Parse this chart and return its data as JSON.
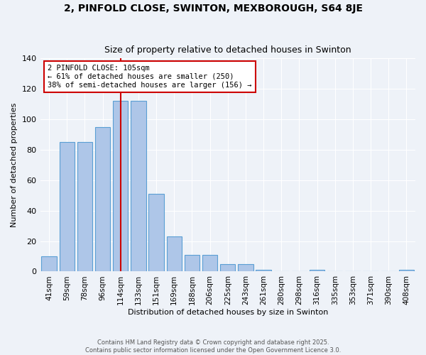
{
  "title": "2, PINFOLD CLOSE, SWINTON, MEXBOROUGH, S64 8JE",
  "subtitle": "Size of property relative to detached houses in Swinton",
  "xlabel": "Distribution of detached houses by size in Swinton",
  "ylabel": "Number of detached properties",
  "categories": [
    "41sqm",
    "59sqm",
    "78sqm",
    "96sqm",
    "114sqm",
    "133sqm",
    "151sqm",
    "169sqm",
    "188sqm",
    "206sqm",
    "225sqm",
    "243sqm",
    "261sqm",
    "280sqm",
    "298sqm",
    "316sqm",
    "335sqm",
    "353sqm",
    "371sqm",
    "390sqm",
    "408sqm"
  ],
  "values": [
    10,
    85,
    85,
    95,
    112,
    112,
    51,
    23,
    11,
    11,
    5,
    5,
    1,
    0,
    0,
    1,
    0,
    0,
    0,
    0,
    1
  ],
  "bar_color": "#aec6e8",
  "bar_edge_color": "#5a9fd4",
  "vline_color": "#cc0000",
  "vline_x_index": 4.0,
  "annotation_title": "2 PINFOLD CLOSE: 105sqm",
  "annotation_line1": "← 61% of detached houses are smaller (250)",
  "annotation_line2": "38% of semi-detached houses are larger (156) →",
  "annotation_box_color": "#ffffff",
  "annotation_box_edge": "#cc0000",
  "ylim": [
    0,
    140
  ],
  "yticks": [
    0,
    20,
    40,
    60,
    80,
    100,
    120,
    140
  ],
  "bg_color": "#eef2f8",
  "grid_color": "#ffffff",
  "footer_line1": "Contains HM Land Registry data © Crown copyright and database right 2025.",
  "footer_line2": "Contains public sector information licensed under the Open Government Licence 3.0."
}
